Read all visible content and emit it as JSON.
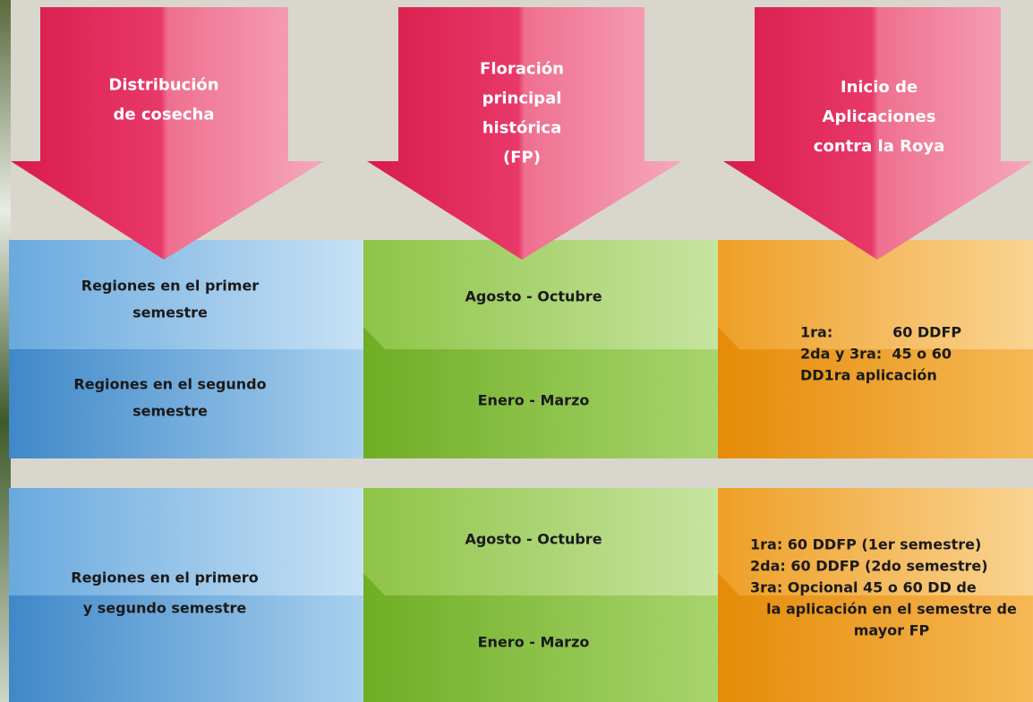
{
  "headers": [
    {
      "lines": [
        "Distribución",
        "de cosecha"
      ]
    },
    {
      "lines": [
        "Floración",
        "principal",
        "histórica",
        "(FP)"
      ]
    },
    {
      "lines": [
        "Inicio de",
        "Aplicaciones",
        "contra la Roya"
      ]
    }
  ],
  "sections": [
    {
      "regions": [
        {
          "lines": [
            "Regiones en el primer",
            "semestre"
          ]
        },
        {
          "lines": [
            "Regiones en el segundo",
            "semestre"
          ]
        }
      ],
      "flowering": [
        "Agosto - Octubre",
        "Enero - Marzo"
      ],
      "applications": [
        "1ra:            60 DDFP",
        "2da y 3ra:  45 o 60",
        "DD1ra aplicación"
      ]
    },
    {
      "regions": [
        {
          "lines": [
            "Regiones en el primero",
            "y segundo semestre"
          ]
        }
      ],
      "flowering": [
        "Agosto - Octubre",
        "Enero - Marzo"
      ],
      "applications": [
        "1ra: 60 DDFP (1er semestre)",
        "2da: 60 DDFP (2do semestre)",
        "3ra: Opcional 45 o 60 DD de",
        "la aplicación en el semestre de",
        "mayor FP"
      ]
    }
  ]
}
